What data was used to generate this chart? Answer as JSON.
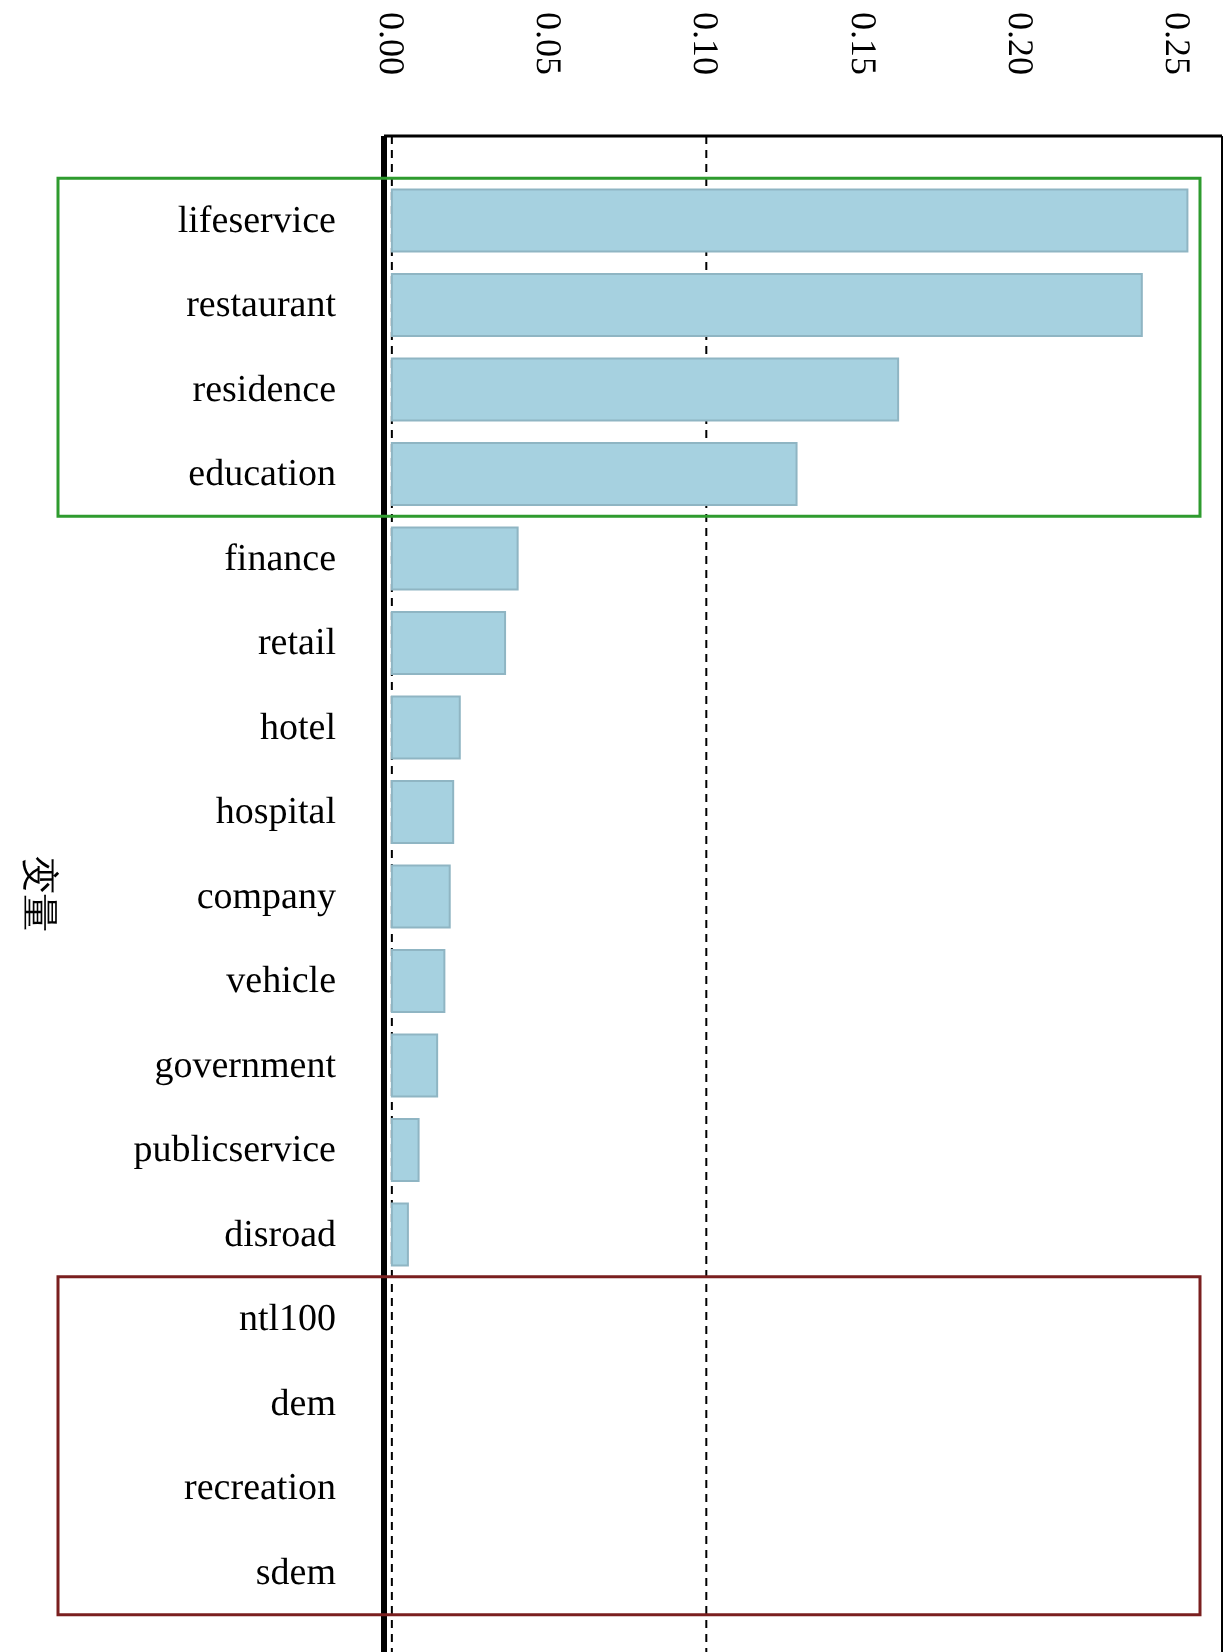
{
  "chart_data": {
    "type": "bar",
    "orientation": "horizontal",
    "ylabel": "变量",
    "categories": [
      "lifeservice",
      "restaurant",
      "residence",
      "education",
      "finance",
      "retail",
      "hotel",
      "hospital",
      "company",
      "vehicle",
      "government",
      "publicservice",
      "disroad",
      "ntl100",
      "dem",
      "recreation",
      "sdem"
    ],
    "values": [
      0.253,
      0.2385,
      0.161,
      0.1287,
      0.04,
      0.036,
      0.0216,
      0.0195,
      0.0184,
      0.0167,
      0.0144,
      0.0085,
      0.0051,
      0,
      0,
      0,
      0
    ],
    "color": "#a6d1e0",
    "xlim": [
      -0.0025,
      0.264
    ],
    "xticks": [
      {
        "value": 0,
        "label": "0.00"
      },
      0.05,
      {
        "value": 0.1,
        "label": "0.10"
      },
      0.15,
      {
        "value": 0.2,
        "label": "0.20"
      },
      0.25
    ],
    "ref_lines": [
      {
        "axis": "x",
        "value": 0,
        "line_style": "dashed",
        "color": "#000000"
      },
      {
        "axis": "x",
        "value": 0.1,
        "line_style": "dashed",
        "color": "#000000"
      }
    ]
  }
}
